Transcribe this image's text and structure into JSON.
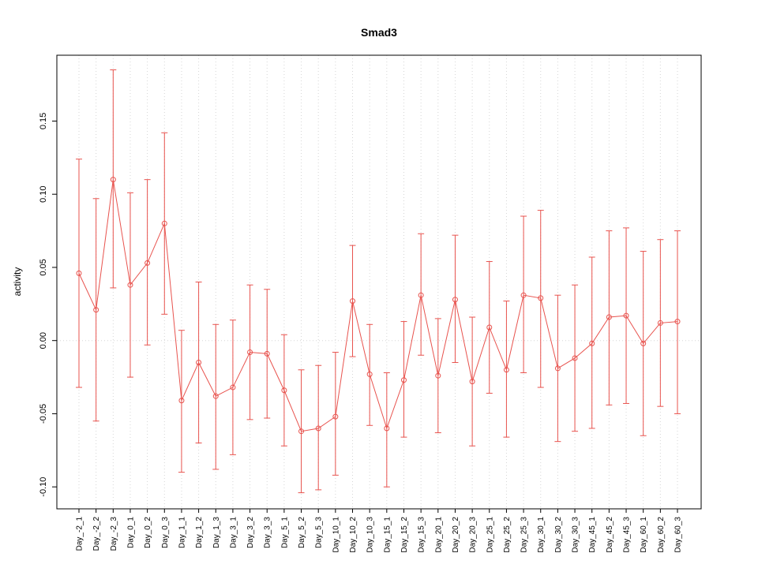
{
  "chart_data": {
    "type": "line",
    "title": "Smad3",
    "xlabel": "",
    "ylabel": "activity",
    "ylim": [
      -0.115,
      0.195
    ],
    "yticks": [
      -0.1,
      -0.05,
      0.0,
      0.05,
      0.1,
      0.15
    ],
    "legend": "none",
    "grid": {
      "vertical": "dotted line at every category",
      "horizontal_at": 0,
      "style": "dotted"
    },
    "colors": {
      "series": "#e8534e",
      "grid": "#d6d6d6",
      "axis": "#000000",
      "background": "#ffffff"
    },
    "marker": "open-circle",
    "error_bars": true,
    "categories": [
      "Day_-2_1",
      "Day_-2_2",
      "Day_-2_3",
      "Day_0_1",
      "Day_0_2",
      "Day_0_3",
      "Day_1_1",
      "Day_1_2",
      "Day_1_3",
      "Day_3_1",
      "Day_3_2",
      "Day_3_3",
      "Day_5_1",
      "Day_5_2",
      "Day_5_3",
      "Day_10_1",
      "Day_10_2",
      "Day_10_3",
      "Day_15_1",
      "Day_15_2",
      "Day_15_3",
      "Day_20_1",
      "Day_20_2",
      "Day_20_3",
      "Day_25_1",
      "Day_25_2",
      "Day_25_3",
      "Day_30_1",
      "Day_30_2",
      "Day_30_3",
      "Day_45_1",
      "Day_45_2",
      "Day_45_3",
      "Day_60_1",
      "Day_60_2",
      "Day_60_3"
    ],
    "values": [
      0.046,
      0.021,
      0.11,
      0.038,
      0.053,
      0.08,
      -0.041,
      -0.015,
      -0.038,
      -0.032,
      -0.008,
      -0.009,
      -0.034,
      -0.062,
      -0.06,
      -0.052,
      0.027,
      -0.023,
      -0.06,
      -0.027,
      0.031,
      -0.024,
      0.028,
      -0.028,
      0.009,
      -0.02,
      0.031,
      0.029,
      -0.019,
      -0.012,
      -0.002,
      0.016,
      0.017,
      -0.002,
      0.012,
      0.013
    ],
    "error_upper": [
      0.124,
      0.097,
      0.185,
      0.101,
      0.11,
      0.142,
      0.007,
      0.04,
      0.011,
      0.014,
      0.038,
      0.035,
      0.004,
      -0.02,
      -0.017,
      -0.008,
      0.065,
      0.011,
      -0.022,
      0.013,
      0.073,
      0.015,
      0.072,
      0.016,
      0.054,
      0.027,
      0.085,
      0.089,
      0.031,
      0.038,
      0.057,
      0.075,
      0.077,
      0.061,
      0.069,
      0.075
    ],
    "error_lower": [
      -0.032,
      -0.055,
      0.036,
      -0.025,
      -0.003,
      0.018,
      -0.09,
      -0.07,
      -0.088,
      -0.078,
      -0.054,
      -0.053,
      -0.072,
      -0.104,
      -0.102,
      -0.092,
      -0.011,
      -0.058,
      -0.1,
      -0.066,
      -0.01,
      -0.063,
      -0.015,
      -0.072,
      -0.036,
      -0.066,
      -0.022,
      -0.032,
      -0.069,
      -0.062,
      -0.06,
      -0.044,
      -0.043,
      -0.065,
      -0.045,
      -0.05
    ]
  }
}
